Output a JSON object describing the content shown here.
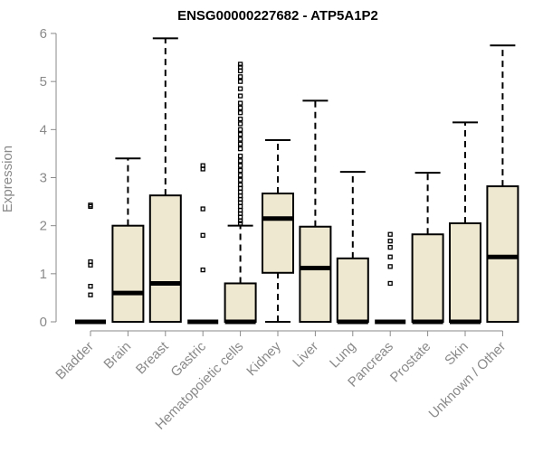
{
  "chart_data": {
    "type": "box",
    "title": "ENSG00000227682 - ATP5A1P2",
    "xlabel": "",
    "ylabel": "Expression",
    "ylim": [
      0,
      6
    ],
    "yticks": [
      0,
      1,
      2,
      3,
      4,
      5,
      6
    ],
    "grid": false,
    "categories": [
      "Bladder",
      "Brain",
      "Breast",
      "Gastric",
      "Hematopoietic cells",
      "Kidney",
      "Liver",
      "Lung",
      "Pancreas",
      "Prostate",
      "Skin",
      "Unknown / Other"
    ],
    "boxes": [
      {
        "name": "Bladder",
        "min": 0,
        "q1": 0,
        "median": 0,
        "q3": 0,
        "max": 0,
        "outliers": [
          0.56,
          0.74,
          1.18,
          1.25,
          2.4,
          2.43
        ]
      },
      {
        "name": "Brain",
        "min": 0,
        "q1": 0,
        "median": 0.6,
        "q3": 2.0,
        "max": 3.4,
        "outliers": []
      },
      {
        "name": "Breast",
        "min": 0,
        "q1": 0,
        "median": 0.8,
        "q3": 2.63,
        "max": 5.9,
        "outliers": []
      },
      {
        "name": "Gastric",
        "min": 0,
        "q1": 0,
        "median": 0,
        "q3": 0,
        "max": 0,
        "outliers": [
          1.08,
          1.8,
          2.35,
          3.18,
          3.25
        ]
      },
      {
        "name": "Hematopoietic cells",
        "min": 0,
        "q1": 0,
        "median": 0,
        "q3": 0.8,
        "max": 2.0,
        "outliers": [
          2.05,
          2.1,
          2.18,
          2.25,
          2.32,
          2.4,
          2.48,
          2.55,
          2.62,
          2.7,
          2.78,
          2.85,
          2.95,
          3.05,
          3.15,
          3.25,
          3.35,
          3.45,
          3.6,
          3.7,
          3.8,
          3.9,
          4.0,
          4.12,
          4.22,
          4.35,
          4.45,
          4.55,
          4.7,
          4.85,
          5.0,
          5.1,
          5.22,
          5.3,
          5.36
        ]
      },
      {
        "name": "Kidney",
        "min": 0,
        "q1": 1.02,
        "median": 2.15,
        "q3": 2.67,
        "max": 3.78,
        "outliers": []
      },
      {
        "name": "Liver",
        "min": 0,
        "q1": 0,
        "median": 1.12,
        "q3": 1.98,
        "max": 4.6,
        "outliers": []
      },
      {
        "name": "Lung",
        "min": 0,
        "q1": 0,
        "median": 0,
        "q3": 1.32,
        "max": 3.12,
        "outliers": []
      },
      {
        "name": "Pancreas",
        "min": 0,
        "q1": 0,
        "median": 0,
        "q3": 0,
        "max": 0,
        "outliers": [
          0.8,
          1.15,
          1.35,
          1.55,
          1.68,
          1.82
        ]
      },
      {
        "name": "Prostate",
        "min": 0,
        "q1": 0,
        "median": 0,
        "q3": 1.82,
        "max": 3.1,
        "outliers": []
      },
      {
        "name": "Skin",
        "min": 0,
        "q1": 0,
        "median": 0,
        "q3": 2.05,
        "max": 4.15,
        "outliers": []
      },
      {
        "name": "Unknown / Other",
        "min": 0,
        "q1": 0,
        "median": 1.35,
        "q3": 2.82,
        "max": 5.75,
        "outliers": []
      }
    ]
  }
}
